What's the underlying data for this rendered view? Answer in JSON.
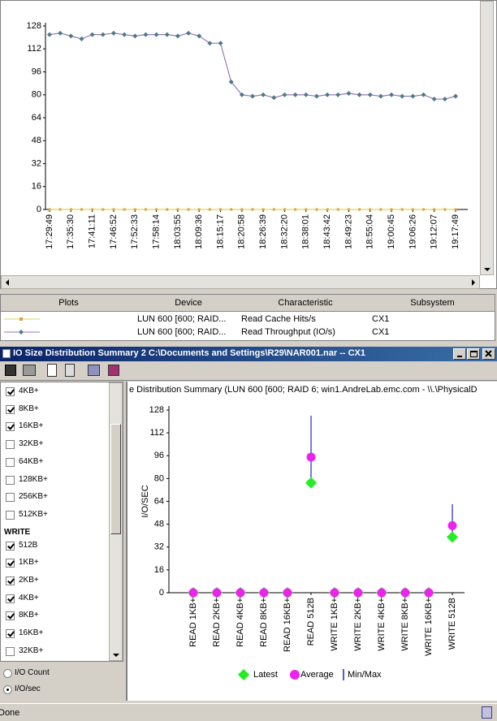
{
  "chart_data": [
    {
      "type": "line",
      "categories": [
        "17:29:49",
        null,
        "17:35:30",
        null,
        "17:41:11",
        null,
        "17:46:52",
        null,
        "17:52:33",
        null,
        "17:58:14",
        null,
        "18:03:55",
        null,
        "18:09:36",
        null,
        "18:15:17",
        null,
        "18:20:58",
        null,
        "18:26:39",
        null,
        "18:32:20",
        null,
        "18:38:01",
        null,
        "18:43:42",
        null,
        "18:49:23",
        null,
        "18:55:04",
        null,
        "19:00:45",
        null,
        "19:06:26",
        null,
        "19:12:07",
        null,
        "19:17:49"
      ],
      "series": [
        {
          "name": "Read Cache Hits/s",
          "color": "#d8d860",
          "marker_color": "#e0a040",
          "values": [
            0,
            0,
            0,
            0,
            0,
            0,
            0,
            0,
            0,
            0,
            0,
            0,
            0,
            0,
            0,
            0,
            0,
            0,
            0,
            0,
            0,
            0,
            0,
            0,
            0,
            0,
            0,
            0,
            0,
            0,
            0,
            0,
            0,
            0,
            0,
            0,
            0,
            0,
            0
          ]
        },
        {
          "name": "Read Throughput (IO/s)",
          "color": "#9a78b0",
          "marker_color": "#4a7a8a",
          "values": [
            122,
            123,
            121,
            119,
            122,
            122,
            123,
            122,
            121,
            122,
            122,
            122,
            121,
            123,
            121,
            116,
            116,
            89,
            80,
            79,
            80,
            78,
            80,
            80,
            80,
            79,
            80,
            80,
            81,
            80,
            80,
            79,
            80,
            79,
            79,
            80,
            77,
            77,
            79
          ]
        }
      ],
      "ylim": [
        0,
        128
      ],
      "yticks": [
        0,
        16,
        32,
        48,
        64,
        80,
        96,
        112,
        128
      ]
    },
    {
      "type": "dot",
      "title": "e Distribution Summary (LUN 600 [600; RAID 6; win1.AndreLab.emc.com - \\\\.\\PhysicalD",
      "y_label": "I/O/SEC",
      "categories": [
        "READ 1KB+",
        "READ 2KB+",
        "READ 4KB+",
        "READ 8KB+",
        "READ 16KB+",
        "READ 512B",
        "WRITE 1KB+",
        "WRITE 2KB+",
        "WRITE 4KB+",
        "WRITE 8KB+",
        "WRITE 16KB+",
        "WRITE 512B"
      ],
      "series": [
        {
          "name": "Latest",
          "color": "#22ee22",
          "values": [
            0,
            0,
            0,
            0,
            0,
            77,
            0,
            0,
            0,
            0,
            0,
            39
          ]
        },
        {
          "name": "Average",
          "color": "#ee22ee",
          "values": [
            0,
            0,
            0,
            0,
            0,
            95,
            0,
            0,
            0,
            0,
            0,
            47
          ]
        },
        {
          "name": "Min/Max",
          "color": "#2222cc",
          "low": [
            0,
            0,
            0,
            0,
            0,
            77,
            0,
            0,
            0,
            0,
            0,
            39
          ],
          "high": [
            0,
            0,
            0,
            0,
            0,
            124,
            0,
            0,
            0,
            0,
            0,
            62
          ]
        }
      ],
      "ylim": [
        0,
        128
      ],
      "yticks": [
        0,
        16,
        32,
        48,
        64,
        80,
        96,
        112,
        128
      ]
    }
  ],
  "table": {
    "headers": [
      "Plots",
      "Device",
      "Characteristic",
      "Subsystem"
    ],
    "rows": [
      {
        "device": "LUN 600 [600; RAID...",
        "subsystem": "CX1"
      },
      {
        "device": "LUN 600 [600; RAID...",
        "subsystem": "CX1"
      }
    ]
  },
  "window": {
    "title": "IO Size Distribution Summary 2 C:\\Documents and Settings\\R29\\NAR001.nar -- CX1"
  },
  "sidebar": {
    "items": [
      {
        "label": "4KB+",
        "checked": true
      },
      {
        "label": "8KB+",
        "checked": true
      },
      {
        "label": "16KB+",
        "checked": true
      },
      {
        "label": "32KB+",
        "checked": false
      },
      {
        "label": "64KB+",
        "checked": false
      },
      {
        "label": "128KB+",
        "checked": false
      },
      {
        "label": "256KB+",
        "checked": false
      },
      {
        "label": "512KB+",
        "checked": false
      },
      {
        "label": "WRITE",
        "header": true
      },
      {
        "label": "512B",
        "checked": true
      },
      {
        "label": "1KB+",
        "checked": true
      },
      {
        "label": "2KB+",
        "checked": true
      },
      {
        "label": "4KB+",
        "checked": true
      },
      {
        "label": "8KB+",
        "checked": true
      },
      {
        "label": "16KB+",
        "checked": true
      },
      {
        "label": "32KB+",
        "checked": false
      }
    ],
    "options": [
      {
        "label": "I/O Count",
        "selected": false
      },
      {
        "label": "I/O/sec",
        "selected": true
      }
    ]
  },
  "status": "Done"
}
